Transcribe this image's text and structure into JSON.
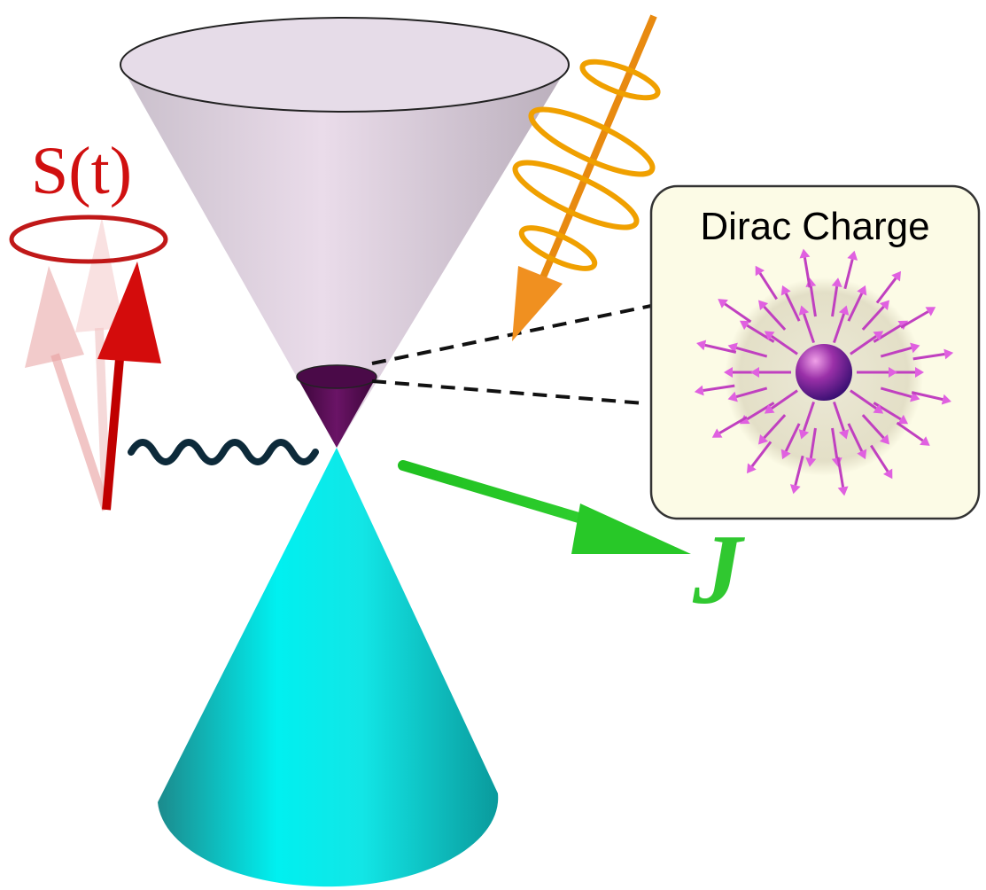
{
  "labels": {
    "spin": "S(t)",
    "box_title": "Dirac Charge",
    "current": "J"
  }
}
